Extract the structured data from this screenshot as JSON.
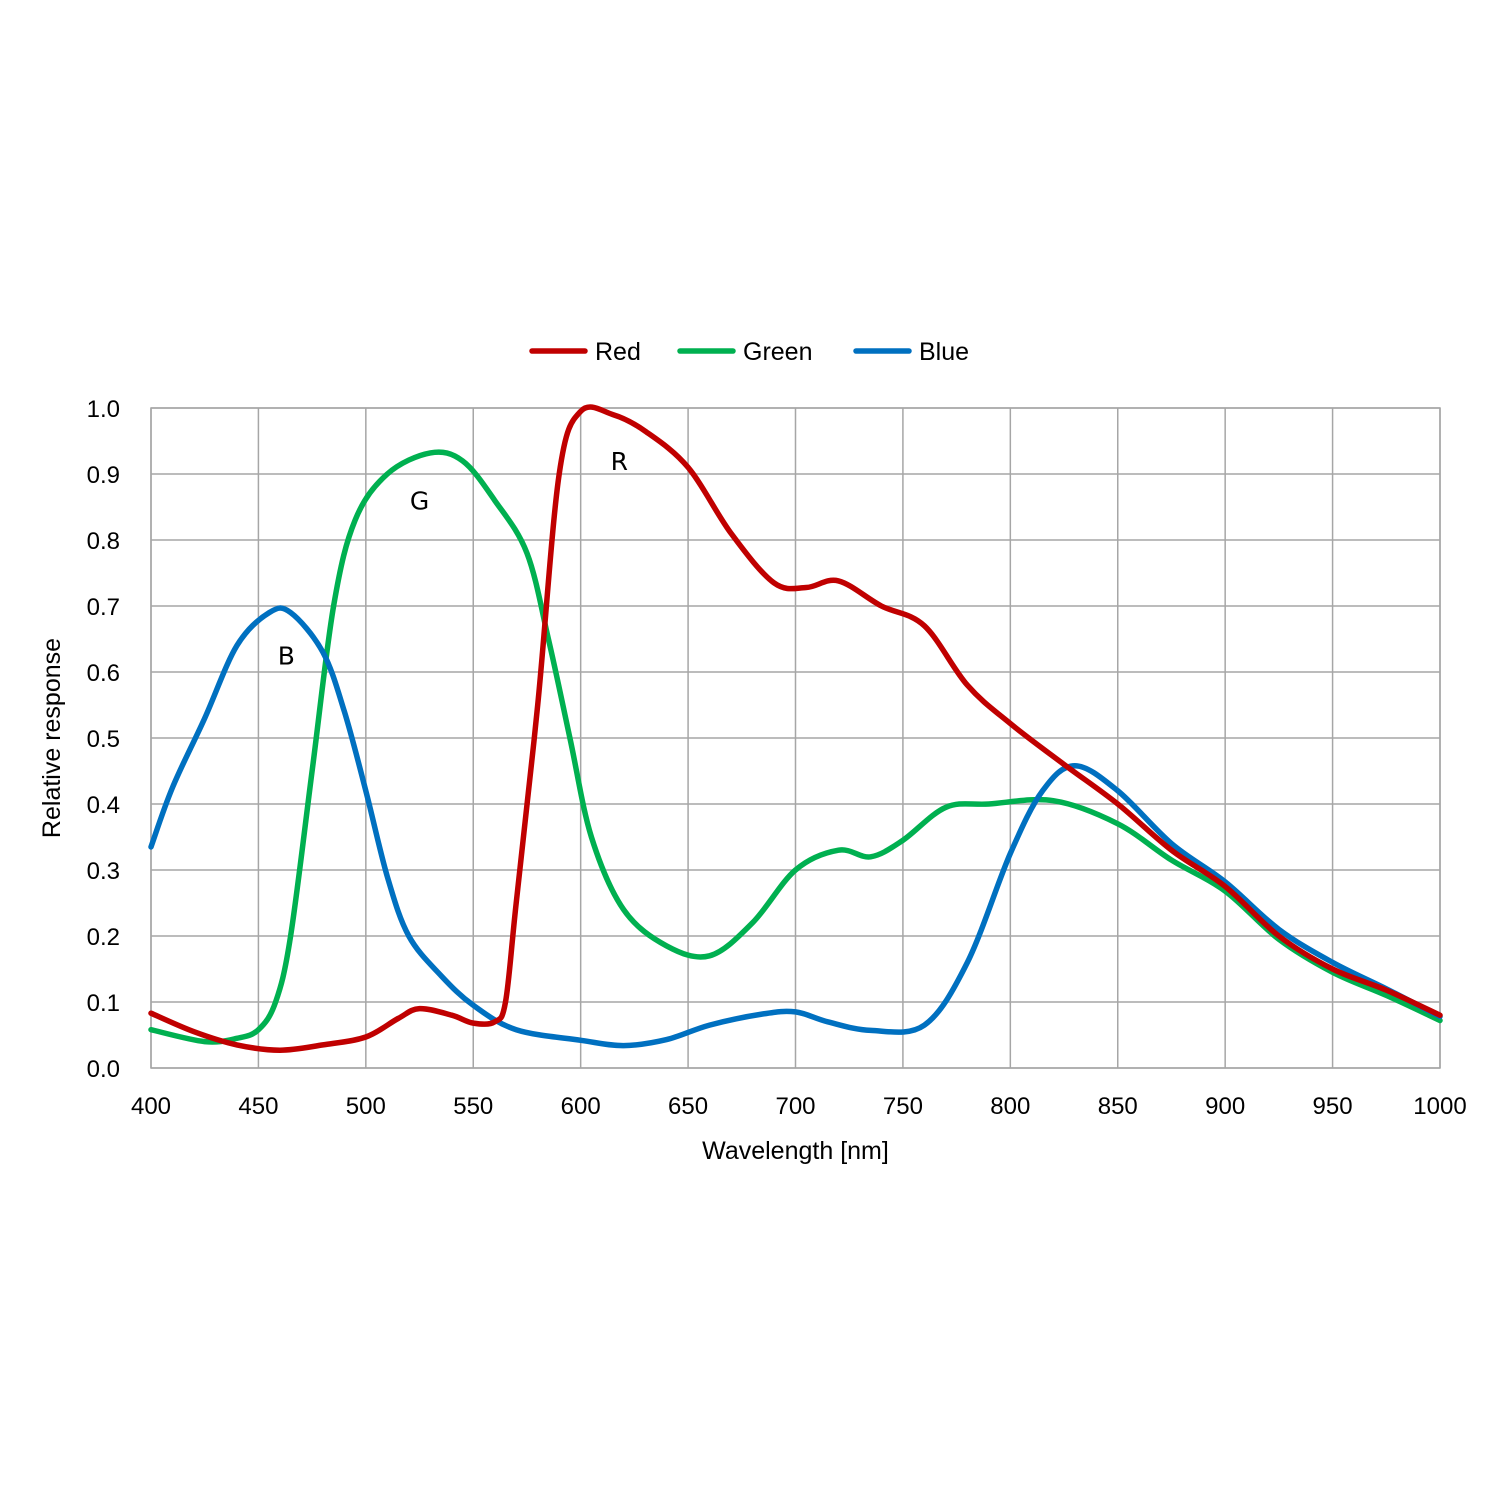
{
  "chart_data": {
    "type": "line",
    "title": "",
    "xlabel": "Wavelength [nm]",
    "ylabel": "Relative response",
    "xlim": [
      400,
      1000
    ],
    "ylim": [
      0,
      1.0
    ],
    "x_ticks": [
      "400",
      "450",
      "500",
      "550",
      "600",
      "650",
      "700",
      "750",
      "800",
      "850",
      "900",
      "950",
      "1000"
    ],
    "y_ticks": [
      "0.0",
      "0.1",
      "0.2",
      "0.3",
      "0.4",
      "0.5",
      "0.6",
      "0.7",
      "0.8",
      "0.9",
      "1.0"
    ],
    "grid": true,
    "legend_position": "top-center",
    "series": [
      {
        "name": "Red",
        "color": "#c00000",
        "points": [
          [
            400,
            0.083
          ],
          [
            420,
            0.055
          ],
          [
            440,
            0.035
          ],
          [
            460,
            0.027
          ],
          [
            480,
            0.035
          ],
          [
            500,
            0.047
          ],
          [
            515,
            0.075
          ],
          [
            525,
            0.09
          ],
          [
            540,
            0.08
          ],
          [
            550,
            0.068
          ],
          [
            560,
            0.07
          ],
          [
            565,
            0.1
          ],
          [
            570,
            0.25
          ],
          [
            580,
            0.55
          ],
          [
            590,
            0.9
          ],
          [
            600,
            0.995
          ],
          [
            615,
            0.99
          ],
          [
            630,
            0.965
          ],
          [
            650,
            0.91
          ],
          [
            670,
            0.81
          ],
          [
            690,
            0.735
          ],
          [
            705,
            0.728
          ],
          [
            720,
            0.738
          ],
          [
            740,
            0.7
          ],
          [
            760,
            0.67
          ],
          [
            780,
            0.58
          ],
          [
            800,
            0.522
          ],
          [
            825,
            0.46
          ],
          [
            850,
            0.4
          ],
          [
            875,
            0.33
          ],
          [
            900,
            0.275
          ],
          [
            925,
            0.2
          ],
          [
            950,
            0.15
          ],
          [
            975,
            0.118
          ],
          [
            1000,
            0.08
          ]
        ]
      },
      {
        "name": "Green",
        "color": "#00b050",
        "points": [
          [
            400,
            0.058
          ],
          [
            425,
            0.04
          ],
          [
            440,
            0.045
          ],
          [
            450,
            0.058
          ],
          [
            458,
            0.1
          ],
          [
            465,
            0.2
          ],
          [
            475,
            0.45
          ],
          [
            485,
            0.7
          ],
          [
            495,
            0.83
          ],
          [
            510,
            0.9
          ],
          [
            530,
            0.932
          ],
          [
            545,
            0.92
          ],
          [
            560,
            0.86
          ],
          [
            575,
            0.78
          ],
          [
            585,
            0.65
          ],
          [
            595,
            0.5
          ],
          [
            605,
            0.35
          ],
          [
            620,
            0.24
          ],
          [
            640,
            0.185
          ],
          [
            660,
            0.17
          ],
          [
            680,
            0.22
          ],
          [
            700,
            0.3
          ],
          [
            720,
            0.33
          ],
          [
            735,
            0.32
          ],
          [
            750,
            0.345
          ],
          [
            770,
            0.395
          ],
          [
            790,
            0.4
          ],
          [
            820,
            0.405
          ],
          [
            850,
            0.37
          ],
          [
            875,
            0.315
          ],
          [
            900,
            0.268
          ],
          [
            925,
            0.195
          ],
          [
            950,
            0.145
          ],
          [
            975,
            0.11
          ],
          [
            1000,
            0.072
          ]
        ]
      },
      {
        "name": "Blue",
        "color": "#0070c0",
        "points": [
          [
            400,
            0.335
          ],
          [
            410,
            0.425
          ],
          [
            425,
            0.53
          ],
          [
            440,
            0.64
          ],
          [
            455,
            0.69
          ],
          [
            465,
            0.69
          ],
          [
            480,
            0.63
          ],
          [
            490,
            0.54
          ],
          [
            500,
            0.42
          ],
          [
            510,
            0.29
          ],
          [
            520,
            0.2
          ],
          [
            535,
            0.14
          ],
          [
            550,
            0.095
          ],
          [
            570,
            0.058
          ],
          [
            600,
            0.042
          ],
          [
            620,
            0.034
          ],
          [
            640,
            0.043
          ],
          [
            660,
            0.065
          ],
          [
            685,
            0.082
          ],
          [
            700,
            0.085
          ],
          [
            715,
            0.07
          ],
          [
            735,
            0.057
          ],
          [
            760,
            0.065
          ],
          [
            780,
            0.16
          ],
          [
            800,
            0.325
          ],
          [
            815,
            0.42
          ],
          [
            830,
            0.458
          ],
          [
            850,
            0.42
          ],
          [
            875,
            0.34
          ],
          [
            900,
            0.282
          ],
          [
            925,
            0.21
          ],
          [
            950,
            0.16
          ],
          [
            975,
            0.12
          ],
          [
            1000,
            0.078
          ]
        ]
      }
    ],
    "annotations": [
      {
        "text": "R",
        "x": 618,
        "y": 0.92
      },
      {
        "text": "G",
        "x": 525,
        "y": 0.86
      },
      {
        "text": "B",
        "x": 463,
        "y": 0.625
      }
    ]
  }
}
